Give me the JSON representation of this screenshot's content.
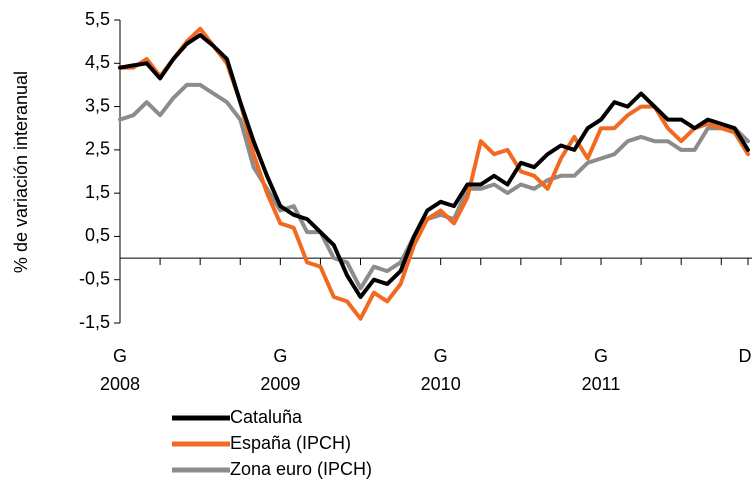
{
  "chart_data": {
    "type": "line",
    "y_label": "% de variación interanual",
    "categories": [
      "G",
      null,
      null,
      null,
      null,
      null,
      null,
      null,
      null,
      null,
      null,
      null,
      "G",
      null,
      null,
      null,
      null,
      null,
      null,
      null,
      null,
      null,
      null,
      null,
      "G",
      null,
      null,
      null,
      null,
      null,
      null,
      null,
      null,
      null,
      null,
      null,
      "G",
      null,
      null,
      null,
      null,
      null,
      null,
      null,
      null,
      null,
      null,
      "D"
    ],
    "category_years": [
      "2008",
      null,
      null,
      null,
      null,
      null,
      null,
      null,
      null,
      null,
      null,
      null,
      "2009",
      null,
      null,
      null,
      null,
      null,
      null,
      null,
      null,
      null,
      null,
      null,
      "2010",
      null,
      null,
      null,
      null,
      null,
      null,
      null,
      null,
      null,
      null,
      null,
      "2011",
      null,
      null,
      null,
      null,
      null,
      null,
      null,
      null,
      null,
      null,
      null
    ],
    "series": [
      {
        "name": "Zona euro (IPCH)",
        "color": "#8c8c8c",
        "values": [
          3.2,
          3.3,
          3.6,
          3.3,
          3.7,
          4.0,
          4.0,
          3.8,
          3.6,
          3.2,
          2.1,
          1.6,
          1.1,
          1.2,
          0.6,
          0.6,
          0.0,
          -0.1,
          -0.7,
          -0.2,
          -0.3,
          -0.1,
          0.5,
          0.9,
          1.0,
          0.9,
          1.6,
          1.6,
          1.7,
          1.5,
          1.7,
          1.6,
          1.8,
          1.9,
          1.9,
          2.2,
          2.3,
          2.4,
          2.7,
          2.8,
          2.7,
          2.7,
          2.5,
          2.5,
          3.0,
          3.0,
          3.0,
          2.7
        ]
      },
      {
        "name": "España (IPCH)",
        "color": "#f26a21",
        "values": [
          4.4,
          4.4,
          4.6,
          4.2,
          4.6,
          5.0,
          5.3,
          4.9,
          4.5,
          3.6,
          2.4,
          1.5,
          0.8,
          0.7,
          -0.1,
          -0.2,
          -0.9,
          -1.0,
          -1.4,
          -0.8,
          -1.0,
          -0.6,
          0.3,
          0.9,
          1.1,
          0.8,
          1.4,
          2.7,
          2.4,
          2.5,
          2.0,
          1.9,
          1.6,
          2.3,
          2.8,
          2.3,
          3.0,
          3.0,
          3.3,
          3.5,
          3.5,
          3.0,
          2.7,
          3.0,
          3.1,
          3.0,
          2.9,
          2.4
        ]
      },
      {
        "name": "Cataluña",
        "color": "#000000",
        "values": [
          4.4,
          4.45,
          4.5,
          4.15,
          4.6,
          4.95,
          5.15,
          4.9,
          4.6,
          3.6,
          2.7,
          1.9,
          1.2,
          1.0,
          0.9,
          0.6,
          0.3,
          -0.4,
          -0.9,
          -0.5,
          -0.6,
          -0.3,
          0.5,
          1.1,
          1.3,
          1.2,
          1.7,
          1.7,
          1.9,
          1.7,
          2.2,
          2.1,
          2.4,
          2.6,
          2.5,
          3.0,
          3.2,
          3.6,
          3.5,
          3.8,
          3.5,
          3.2,
          3.2,
          3.0,
          3.2,
          3.1,
          3.0,
          2.5
        ]
      }
    ],
    "legend_order": [
      2,
      1,
      0
    ],
    "ylim": [
      -1.5,
      5.5
    ],
    "yticks": [
      {
        "value": -1.5,
        "label": "-1,5"
      },
      {
        "value": -0.5,
        "label": "-0,5"
      },
      {
        "value": 0.5,
        "label": "0,5"
      },
      {
        "value": 1.5,
        "label": "1,5"
      },
      {
        "value": 2.5,
        "label": "2,5"
      },
      {
        "value": 3.5,
        "label": "3,5"
      },
      {
        "value": 4.5,
        "label": "4,5"
      },
      {
        "value": 5.5,
        "label": "5,5"
      }
    ],
    "grid": false
  }
}
